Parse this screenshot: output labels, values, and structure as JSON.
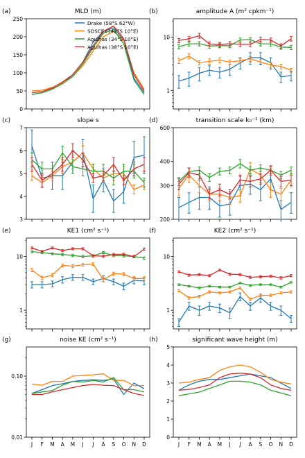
{
  "figure": {
    "months": [
      "J",
      "F",
      "M",
      "A",
      "M",
      "J",
      "J",
      "A",
      "S",
      "O",
      "N",
      "D"
    ],
    "legend": [
      {
        "name": "Drake (58°S 62°W)",
        "color": "#1f77b4"
      },
      {
        "name": "SOSCEx (42°S 10°E)",
        "color": "#ff7f0e"
      },
      {
        "name": "Agulhas (34°S 10°E)",
        "color": "#2ca02c"
      },
      {
        "name": "Agulhas (38°S 10°E)",
        "color": "#d62728"
      }
    ]
  },
  "chart_data": [
    {
      "type": "line",
      "letter": "(a)",
      "title": "MLD (m)",
      "scale": "linear",
      "ylim": [
        0,
        250
      ],
      "yticks": [
        0,
        50,
        100,
        150,
        200,
        250
      ],
      "yticklabels": [
        "0",
        "50",
        "100",
        "150",
        "200",
        "250"
      ],
      "legend": true,
      "legend_placement": "top-right",
      "series": [
        {
          "color": "#1f77b4",
          "values": [
            40,
            45,
            55,
            70,
            95,
            130,
            185,
            215,
            225,
            190,
            85,
            45
          ]
        },
        {
          "color": "#ff7f0e",
          "values": [
            50,
            52,
            60,
            72,
            90,
            120,
            160,
            200,
            215,
            190,
            100,
            55
          ]
        },
        {
          "color": "#2ca02c",
          "values": [
            40,
            45,
            55,
            70,
            90,
            125,
            170,
            210,
            220,
            180,
            80,
            40
          ]
        },
        {
          "color": "#d62728",
          "values": [
            45,
            48,
            58,
            75,
            95,
            130,
            175,
            215,
            230,
            195,
            95,
            50
          ]
        }
      ]
    },
    {
      "type": "line",
      "letter": "(b)",
      "title": "amplitude A (m² cpkm⁻¹)",
      "scale": "log",
      "ylim": [
        0.45,
        22
      ],
      "yticks": [
        1,
        10
      ],
      "yticklabels": [
        "1",
        "10"
      ],
      "minor": true,
      "series": [
        {
          "color": "#1f77b4",
          "values": [
            1.5,
            1.7,
            2.1,
            2.4,
            2.2,
            2.5,
            3.3,
            4.1,
            4.1,
            3.3,
            1.8,
            1.9
          ],
          "errors": [
            0.4,
            0.5,
            0.6,
            0.5,
            0.5,
            0.6,
            0.8,
            1.0,
            1.0,
            0.8,
            0.4,
            0.4
          ]
        },
        {
          "color": "#ff7f0e",
          "values": [
            3.6,
            4.4,
            3.3,
            3.5,
            3.7,
            3.4,
            3.6,
            3.9,
            3.4,
            3.0,
            2.8,
            2.4
          ],
          "errors": [
            0.4,
            0.5,
            0.3,
            0.4,
            0.4,
            0.3,
            0.4,
            0.4,
            0.4,
            0.3,
            0.3,
            0.2
          ]
        },
        {
          "color": "#2ca02c",
          "values": [
            6.6,
            7.4,
            7.5,
            6.8,
            6.9,
            6.9,
            8.8,
            8.9,
            7.5,
            7.4,
            6.5,
            6.4
          ],
          "errors": [
            0.6,
            0.7,
            0.7,
            0.6,
            0.6,
            0.6,
            0.8,
            0.8,
            0.7,
            0.7,
            0.6,
            0.6
          ]
        },
        {
          "color": "#d62728",
          "values": [
            8.6,
            9.3,
            10.6,
            7.4,
            7.2,
            7.5,
            7.3,
            7.3,
            9.0,
            8.8,
            6.8,
            9.3
          ],
          "errors": [
            0.8,
            0.9,
            1.1,
            0.7,
            0.7,
            0.7,
            0.7,
            0.7,
            0.9,
            0.8,
            0.7,
            0.9
          ]
        }
      ]
    },
    {
      "type": "line",
      "letter": "(c)",
      "title": "slope s",
      "scale": "linear",
      "ylim": [
        3,
        7
      ],
      "yticks": [
        3,
        4,
        5,
        6,
        7
      ],
      "yticklabels": [
        "3",
        "4",
        "5",
        "6",
        "7"
      ],
      "series": [
        {
          "color": "#1f77b4",
          "values": [
            6.2,
            4.8,
            4.9,
            4.9,
            5.5,
            5.9,
            3.9,
            4.7,
            3.8,
            4.2,
            5.7,
            5.8
          ],
          "errors": [
            0.7,
            0.4,
            0.6,
            0.6,
            0.5,
            0.6,
            0.6,
            0.5,
            0.5,
            0.5,
            0.7,
            0.8
          ]
        },
        {
          "color": "#ff7f0e",
          "values": [
            4.9,
            4.6,
            4.9,
            5.3,
            5.5,
            5.9,
            5.2,
            4.8,
            5.0,
            5.0,
            4.3,
            4.5
          ],
          "errors": [
            0.2,
            0.2,
            0.2,
            0.3,
            0.3,
            0.3,
            0.2,
            0.2,
            0.3,
            0.3,
            0.2,
            0.2
          ]
        },
        {
          "color": "#2ca02c",
          "values": [
            5.6,
            5.2,
            5.2,
            5.9,
            5.3,
            5.2,
            5.1,
            5.1,
            4.8,
            5.1,
            5.1,
            4.6
          ],
          "errors": [
            0.3,
            0.3,
            0.3,
            0.3,
            0.3,
            0.3,
            0.3,
            0.3,
            0.3,
            0.3,
            0.3,
            0.2
          ]
        },
        {
          "color": "#d62728",
          "values": [
            5.4,
            4.7,
            5.0,
            5.4,
            6.0,
            5.6,
            4.8,
            4.9,
            5.4,
            4.7,
            5.2,
            5.4
          ],
          "errors": [
            0.3,
            0.3,
            0.2,
            0.3,
            0.3,
            0.3,
            0.2,
            0.2,
            0.3,
            0.2,
            0.3,
            0.3
          ]
        }
      ]
    },
    {
      "type": "line",
      "letter": "(d)",
      "title": "transition scale k₀⁻¹ (km)",
      "scale": "log",
      "ylim": [
        200,
        600
      ],
      "yticks": [
        200,
        300,
        400,
        600
      ],
      "yticklabels": [
        "200",
        "300",
        "400",
        "600"
      ],
      "series": [
        {
          "color": "#1f77b4",
          "values": [
            230,
            245,
            260,
            260,
            235,
            240,
            300,
            305,
            285,
            325,
            225,
            245
          ],
          "errors": [
            30,
            30,
            35,
            35,
            30,
            30,
            35,
            35,
            35,
            40,
            25,
            30
          ]
        },
        {
          "color": "#ff7f0e",
          "values": [
            290,
            340,
            300,
            270,
            270,
            260,
            265,
            365,
            340,
            285,
            270,
            320
          ],
          "errors": [
            25,
            30,
            25,
            20,
            20,
            20,
            20,
            30,
            30,
            25,
            20,
            25
          ]
        },
        {
          "color": "#2ca02c",
          "values": [
            315,
            355,
            360,
            330,
            355,
            360,
            390,
            360,
            370,
            360,
            340,
            360
          ],
          "errors": [
            15,
            15,
            15,
            15,
            15,
            15,
            20,
            15,
            15,
            15,
            15,
            15
          ]
        },
        {
          "color": "#d62728",
          "values": [
            305,
            350,
            340,
            270,
            285,
            270,
            320,
            315,
            325,
            360,
            315,
            320
          ],
          "errors": [
            20,
            20,
            20,
            15,
            20,
            15,
            20,
            20,
            20,
            20,
            20,
            20
          ]
        }
      ]
    },
    {
      "type": "line",
      "letter": "(e)",
      "title": "KE1 (cm² s⁻¹)",
      "scale": "log",
      "ylim": [
        0.45,
        22
      ],
      "yticks": [
        1,
        10
      ],
      "yticklabels": [
        "1",
        "10"
      ],
      "minor": true,
      "series": [
        {
          "color": "#1f77b4",
          "values": [
            3.0,
            3.0,
            3.1,
            3.7,
            4.1,
            4.1,
            3.4,
            3.9,
            3.4,
            2.8,
            3.6,
            3.5
          ],
          "errors": [
            0.4,
            0.4,
            0.4,
            0.5,
            0.5,
            0.5,
            0.4,
            0.5,
            0.4,
            0.4,
            0.5,
            0.5
          ]
        },
        {
          "color": "#ff7f0e",
          "values": [
            5.6,
            4.0,
            4.5,
            6.8,
            6.6,
            7.0,
            7.2,
            3.7,
            4.8,
            4.7,
            3.9,
            3.9
          ],
          "errors": [
            0.4,
            0.3,
            0.3,
            0.4,
            0.4,
            0.4,
            0.4,
            0.3,
            0.3,
            0.3,
            0.3,
            0.3
          ]
        },
        {
          "color": "#2ca02c",
          "values": [
            12.3,
            11.8,
            11.2,
            10.9,
            10.4,
            10.0,
            10.3,
            11.8,
            10.4,
            10.3,
            10.0,
            9.3
          ],
          "errors": [
            0.5,
            0.5,
            0.5,
            0.5,
            0.5,
            0.5,
            0.5,
            0.5,
            0.5,
            0.5,
            0.5,
            0.5
          ]
        },
        {
          "color": "#d62728",
          "values": [
            14.4,
            12.4,
            14.4,
            12.9,
            13.9,
            13.9,
            10.3,
            10.1,
            10.9,
            11.0,
            9.9,
            13.7
          ],
          "errors": [
            0.6,
            0.5,
            0.6,
            0.5,
            0.6,
            0.6,
            0.5,
            0.5,
            0.5,
            0.5,
            0.5,
            0.6
          ]
        }
      ]
    },
    {
      "type": "line",
      "letter": "(f)",
      "title": "KE2 (cm² s⁻¹)",
      "scale": "log",
      "ylim": [
        0.45,
        22
      ],
      "yticks": [
        1,
        10
      ],
      "yticklabels": [
        "1",
        "10"
      ],
      "minor": true,
      "series": [
        {
          "color": "#1f77b4",
          "values": [
            0.6,
            1.2,
            1.0,
            1.2,
            1.1,
            0.9,
            1.8,
            1.2,
            1.7,
            1.2,
            1.0,
            0.7
          ],
          "errors": [
            0.1,
            0.2,
            0.2,
            0.2,
            0.2,
            0.2,
            0.3,
            0.2,
            0.3,
            0.2,
            0.2,
            0.1
          ]
        },
        {
          "color": "#ff7f0e",
          "values": [
            2.3,
            1.7,
            1.8,
            2.2,
            2.1,
            2.2,
            2.6,
            1.6,
            1.9,
            1.9,
            2.1,
            2.2
          ],
          "errors": [
            0.1,
            0.1,
            0.1,
            0.1,
            0.1,
            0.1,
            0.1,
            0.1,
            0.1,
            0.1,
            0.1,
            0.1
          ]
        },
        {
          "color": "#2ca02c",
          "values": [
            3.0,
            2.8,
            2.6,
            2.8,
            2.7,
            2.7,
            3.2,
            2.9,
            3.0,
            3.0,
            2.7,
            3.3
          ],
          "errors": [
            0.1,
            0.1,
            0.1,
            0.1,
            0.1,
            0.1,
            0.1,
            0.1,
            0.1,
            0.1,
            0.1,
            0.1
          ]
        },
        {
          "color": "#d62728",
          "values": [
            5.2,
            4.5,
            4.6,
            4.4,
            5.6,
            4.7,
            4.6,
            4.1,
            4.2,
            4.3,
            4.0,
            4.4
          ],
          "errors": [
            0.2,
            0.2,
            0.2,
            0.2,
            0.2,
            0.2,
            0.2,
            0.2,
            0.2,
            0.2,
            0.2,
            0.2
          ]
        }
      ]
    },
    {
      "type": "line",
      "letter": "(g)",
      "title": "noise KE (cm² s⁻¹)",
      "scale": "log",
      "ylim": [
        0.01,
        0.3
      ],
      "yticks": [
        0.01,
        0.1
      ],
      "yticklabels": [
        "0.01",
        "0.10"
      ],
      "minor": true,
      "series": [
        {
          "color": "#1f77b4",
          "values": [
            0.052,
            0.06,
            0.07,
            0.075,
            0.082,
            0.085,
            0.087,
            0.085,
            0.09,
            0.05,
            0.077,
            0.062
          ]
        },
        {
          "color": "#ff7f0e",
          "values": [
            0.074,
            0.071,
            0.082,
            0.082,
            0.1,
            0.102,
            0.105,
            0.109,
            0.085,
            0.085,
            0.07,
            0.07
          ]
        },
        {
          "color": "#2ca02c",
          "values": [
            0.052,
            0.055,
            0.058,
            0.071,
            0.082,
            0.08,
            0.085,
            0.08,
            0.095,
            0.06,
            0.06,
            0.055
          ]
        },
        {
          "color": "#d62728",
          "values": [
            0.05,
            0.05,
            0.055,
            0.06,
            0.065,
            0.07,
            0.073,
            0.071,
            0.07,
            0.06,
            0.052,
            0.048
          ]
        }
      ]
    },
    {
      "type": "line",
      "letter": "(h)",
      "title": "significant wave height (m)",
      "scale": "linear",
      "ylim": [
        0,
        5
      ],
      "yticks": [
        0,
        1,
        2,
        3,
        4,
        5
      ],
      "yticklabels": [
        "0",
        "1",
        "2",
        "3",
        "4",
        "5"
      ],
      "series": [
        {
          "color": "#1f77b4",
          "values": [
            2.6,
            2.9,
            3.1,
            3.2,
            3.2,
            3.3,
            3.4,
            3.5,
            3.4,
            3.3,
            3.0,
            2.7
          ]
        },
        {
          "color": "#ff7f0e",
          "values": [
            3.0,
            3.05,
            3.2,
            3.3,
            3.7,
            3.9,
            4.0,
            3.9,
            3.6,
            3.2,
            3.05,
            2.95
          ]
        },
        {
          "color": "#2ca02c",
          "values": [
            2.3,
            2.4,
            2.5,
            2.7,
            2.9,
            3.1,
            3.1,
            3.05,
            2.9,
            2.6,
            2.45,
            2.3
          ]
        },
        {
          "color": "#d62728",
          "values": [
            2.6,
            2.65,
            2.75,
            2.9,
            3.3,
            3.5,
            3.55,
            3.5,
            3.3,
            2.9,
            2.7,
            2.6
          ]
        }
      ]
    }
  ]
}
